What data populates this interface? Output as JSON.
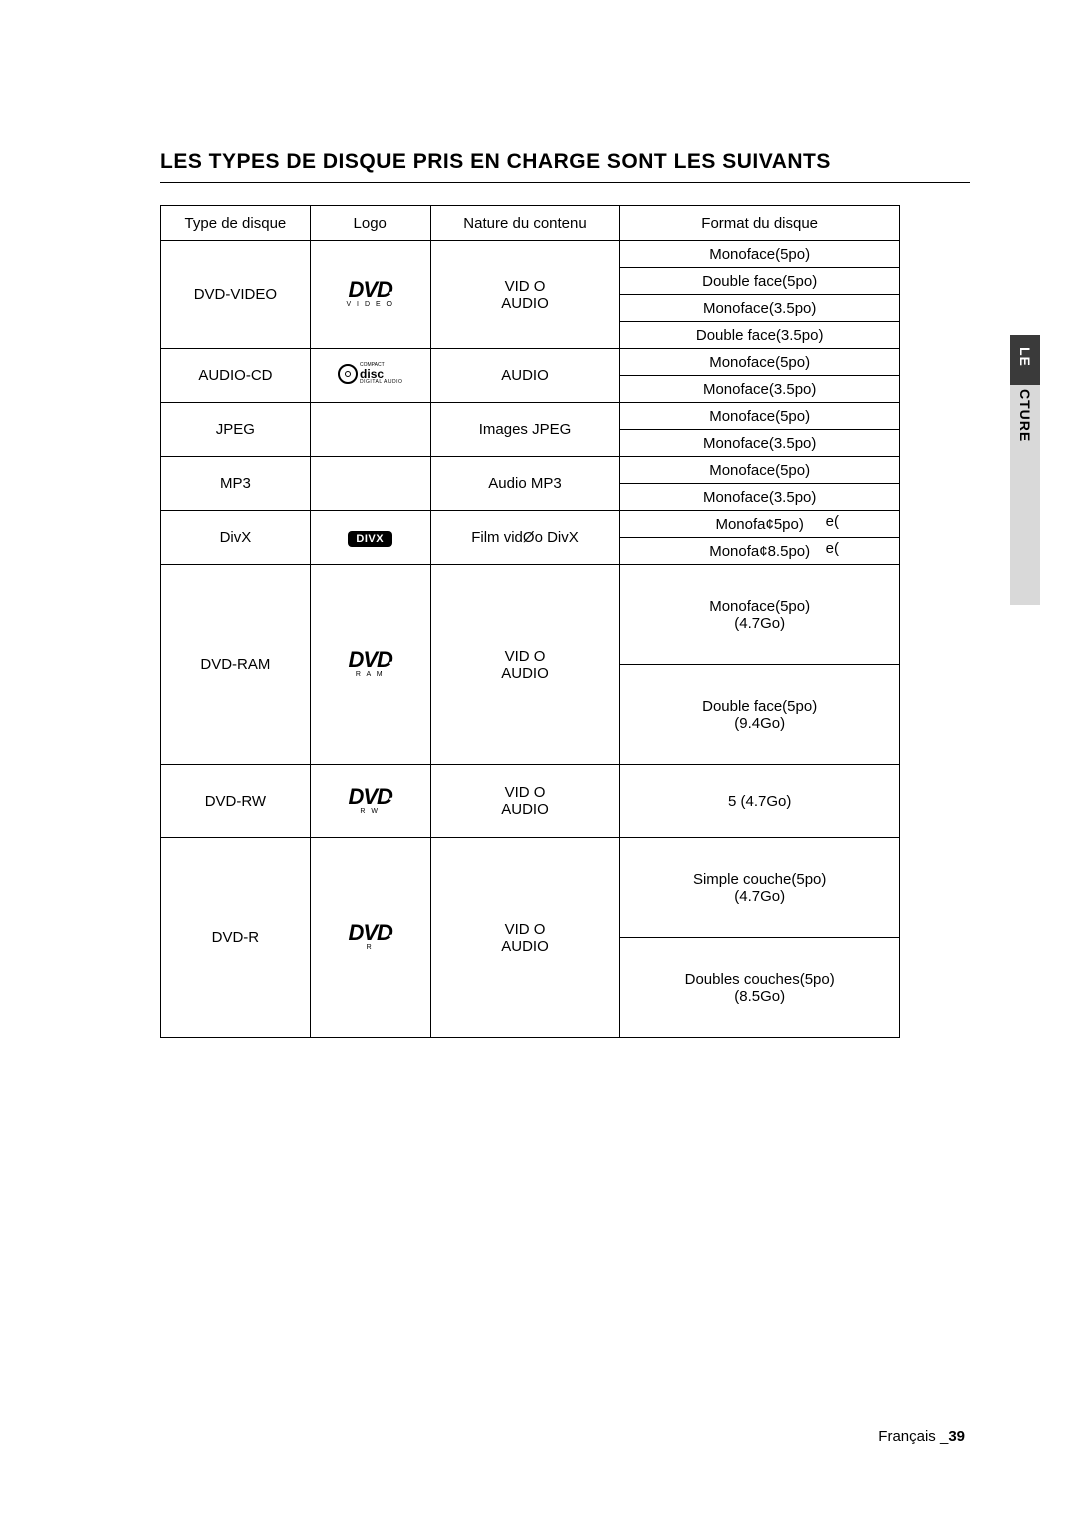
{
  "title": "LES TYPES DE DISQUE PRIS EN CHARGE SONT LES SUIVANTS",
  "sideTab": {
    "label": "LECTURE"
  },
  "headers": {
    "type": "Type de disque",
    "logo": "Logo",
    "nature": "Nature du contenu",
    "format": "Format du disque"
  },
  "rows": {
    "dvdVideo": {
      "type": "DVD-VIDEO",
      "logoSub": "V I D E O",
      "nature1": "VID O",
      "nature2": "AUDIO",
      "formats": [
        "Monoface(5po)",
        "Double face(5po)",
        "Monoface(3.5po)",
        "Double face(3.5po)"
      ]
    },
    "audioCd": {
      "type": "AUDIO-CD",
      "nature": "AUDIO",
      "formats": [
        "Monoface(5po)",
        "Monoface(3.5po)"
      ]
    },
    "jpeg": {
      "type": "JPEG",
      "nature": "Images JPEG",
      "formats": [
        "Monoface(5po)",
        "Monoface(3.5po)"
      ]
    },
    "mp3": {
      "type": "MP3",
      "nature": "Audio MP3",
      "formats": [
        "Monoface(5po)",
        "Monoface(3.5po)"
      ]
    },
    "divx": {
      "type": "DivX",
      "nature": "Film vidØo DivX",
      "format1a": "Monofa¢5po)",
      "format1b": "e(",
      "format2a": "Monofa¢8.5po)",
      "format2b": "e("
    },
    "dvdRam": {
      "type": "DVD-RAM",
      "logoSub": "R A M",
      "nature1": "VID O",
      "nature2": "AUDIO",
      "format1a": "Monoface(5po)",
      "format1b": "(4.7Go)",
      "format2a": "Double face(5po)",
      "format2b": "(9.4Go)"
    },
    "dvdRw": {
      "type": "DVD-RW",
      "logoSub": "R W",
      "nature1": "VID O",
      "nature2": "AUDIO",
      "format": "5  (4.7Go)"
    },
    "dvdR": {
      "type": "DVD-R",
      "logoSub": "R",
      "nature1": "VID O",
      "nature2": "AUDIO",
      "format1a": "Simple couche(5po)",
      "format1b": "(4.7Go)",
      "format2a": "Doubles couches(5po)",
      "format2b": "(8.5Go)"
    }
  },
  "footer": {
    "lang": "Français _",
    "page": "39"
  },
  "logos": {
    "dvdText": "DVD",
    "cdText": "disc",
    "cdSup": "COMPACT",
    "cdSub": "DIGITAL AUDIO",
    "divx": "DIVX"
  }
}
